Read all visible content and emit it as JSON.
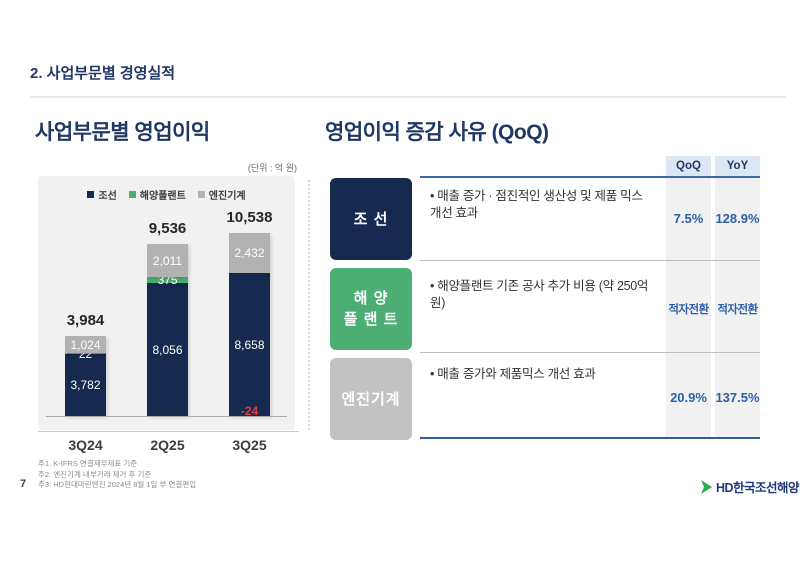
{
  "slide": {
    "header_title": "2. 사업부문별 경영실적",
    "page_number": "7",
    "footnotes": [
      "주1. K-IFRS 연결재무제표 기준",
      "주2. 엔진기계 내부거래 제거 후 기준",
      "주3: HD현대마린엔진 2024년 8월 1일 부 연결편입"
    ],
    "logo_text": "HD한국조선해양"
  },
  "left_section": {
    "title": "사업부문별 영업이익",
    "unit": "(단위 : 억 원)"
  },
  "chart_data": {
    "type": "bar",
    "stacked": true,
    "title": "사업부문별 영업이익",
    "unit": "억 원",
    "categories": [
      "3Q24",
      "2Q25",
      "3Q25"
    ],
    "series": [
      {
        "name": "조선",
        "color": "#16294f",
        "values": [
          3782,
          8056,
          8658
        ]
      },
      {
        "name": "해양플랜트",
        "color": "#4cae72",
        "values": [
          22,
          375,
          -24
        ]
      },
      {
        "name": "엔진기계",
        "color": "#b2b2b2",
        "values": [
          1024,
          2011,
          2432
        ]
      }
    ],
    "totals": [
      3984,
      9536,
      10538
    ],
    "legend_position": "top",
    "grid": false,
    "negative_label_color": "#e03c3c"
  },
  "right_section": {
    "title": "영업이익 증감 사유 (QoQ)",
    "columns": [
      "QoQ",
      "YoY"
    ],
    "rows": [
      {
        "segment": "조     선",
        "color": "#16294f",
        "bullet": "• 매출 증가 · 점진적인 생산성 및 제품 믹스 개선 효과",
        "qoq": "7.5%",
        "yoy": "128.9%"
      },
      {
        "segment": "해 양\n플 랜 트",
        "color": "#4cae72",
        "bullet": "• 해양플랜트 기존 공사 추가 비용 (약 250억원)",
        "qoq": "적자전환",
        "yoy": "적자전환"
      },
      {
        "segment": "엔진기계",
        "color": "#c2c2c2",
        "bullet": "• 매출 증가와 제품믹스 개선 효과",
        "qoq": "20.9%",
        "yoy": "137.5%"
      }
    ]
  }
}
